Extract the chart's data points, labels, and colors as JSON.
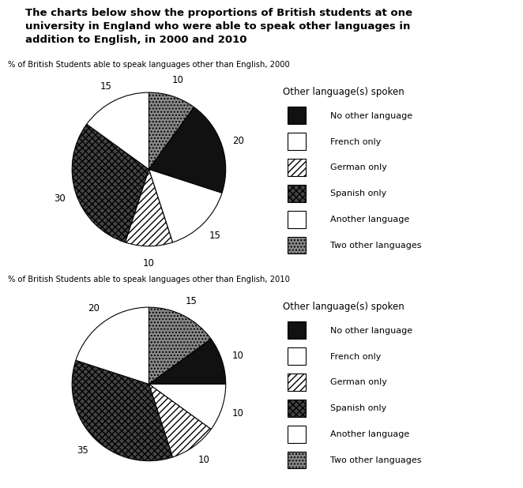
{
  "title_line1": "The charts below show the proportions of British students at one",
  "title_line2": "university in England who were able to speak other languages in",
  "title_line3": "addition to English, in 2000 and 2010",
  "chart1_title": "% of British Students able to speak languages other than English, 2000",
  "chart2_title": "% of British Students able to speak languages other than English, 2010",
  "legend_title": "Other language(s) spoken",
  "categories": [
    "No other language",
    "French only",
    "German only",
    "Spanish only",
    "Another language",
    "Two other languages"
  ],
  "values_2000": [
    20,
    15,
    10,
    30,
    15,
    10
  ],
  "values_2010": [
    10,
    10,
    10,
    35,
    20,
    15
  ],
  "slice_order_2000": [
    5,
    0,
    1,
    2,
    3,
    4
  ],
  "slice_order_2010": [
    5,
    0,
    1,
    2,
    3,
    4
  ],
  "background_color": "#ffffff",
  "styles": [
    {
      "fc": "#111111",
      "hatch": "",
      "ec": "black",
      "label": "No other language"
    },
    {
      "fc": "#ffffff",
      "hatch": "",
      "ec": "black",
      "label": "French only"
    },
    {
      "fc": "#ffffff",
      "hatch": "////",
      "ec": "black",
      "label": "German only"
    },
    {
      "fc": "#444444",
      "hatch": "xxxx",
      "ec": "black",
      "label": "Spanish only"
    },
    {
      "fc": "#ffffff",
      "hatch": "",
      "ec": "black",
      "label": "Another language"
    },
    {
      "fc": "#888888",
      "hatch": "....",
      "ec": "black",
      "label": "Two other languages"
    }
  ]
}
